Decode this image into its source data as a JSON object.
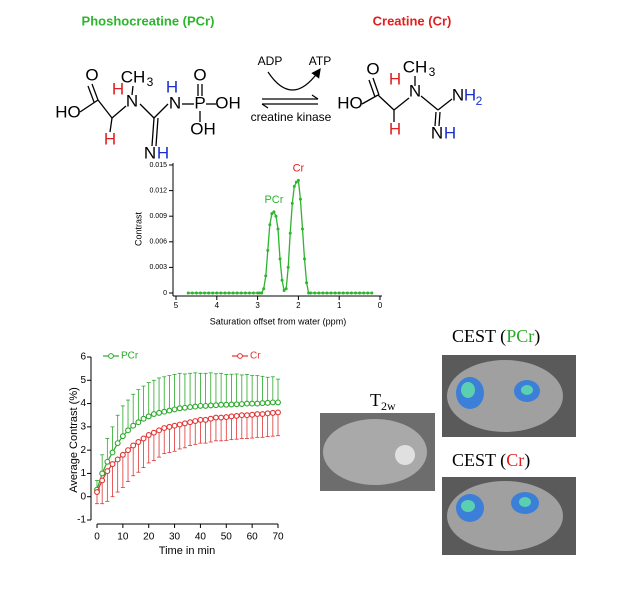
{
  "scheme": {
    "title_left": "Phoshocreatine (PCr)",
    "title_right": "Creatine (Cr)",
    "pcr_atoms": [
      "O",
      "HO",
      "H",
      "H",
      "CH",
      "3",
      "N",
      "H",
      "N",
      "P",
      "O",
      "OH",
      "OH",
      "N",
      "H"
    ],
    "cr_atoms": [
      "O",
      "HO",
      "H",
      "H",
      "CH",
      "3",
      "N",
      "N",
      "H",
      "2",
      "N",
      "H"
    ],
    "cofactor_in": "ADP",
    "cofactor_out": "ATP",
    "enzyme": "creatine kinase"
  },
  "images": {
    "t2w": {
      "label": "T",
      "sub": "2w"
    },
    "cest_pcr": {
      "prefix": "CEST (",
      "agent": "PCr",
      "suffix": ")"
    },
    "cest_cr": {
      "prefix": "CEST (",
      "agent": "Cr",
      "suffix": ")"
    }
  },
  "chart_data": [
    {
      "type": "spectrum",
      "xlabel": "Saturation offset from water (ppm)",
      "ylabel": "Contrast",
      "color": "#2db52d",
      "x": [
        4.7,
        4.6,
        4.5,
        4.4,
        4.3,
        4.2,
        4.1,
        4.0,
        3.9,
        3.8,
        3.7,
        3.6,
        3.5,
        3.4,
        3.3,
        3.2,
        3.1,
        3.0,
        2.95,
        2.9,
        2.85,
        2.8,
        2.75,
        2.7,
        2.65,
        2.6,
        2.55,
        2.5,
        2.45,
        2.4,
        2.35,
        2.3,
        2.25,
        2.2,
        2.15,
        2.1,
        2.05,
        2.0,
        1.95,
        1.9,
        1.85,
        1.8,
        1.75,
        1.7,
        1.6,
        1.5,
        1.4,
        1.3,
        1.2,
        1.1,
        1.0,
        0.9,
        0.8,
        0.7,
        0.6,
        0.5,
        0.4,
        0.3,
        0.2
      ],
      "values": [
        0,
        0,
        0,
        0,
        0,
        0,
        0,
        0,
        0,
        0,
        0,
        0,
        0,
        0,
        0,
        0,
        0,
        0,
        0,
        0,
        0.0005,
        0.002,
        0.005,
        0.008,
        0.0093,
        0.0095,
        0.009,
        0.0075,
        0.004,
        0.0015,
        0.0003,
        0.0005,
        0.003,
        0.007,
        0.0105,
        0.0125,
        0.013,
        0.0132,
        0.011,
        0.0075,
        0.004,
        0.0012,
        0,
        0,
        0,
        0,
        0,
        0,
        0,
        0,
        0,
        0,
        0,
        0,
        0,
        0,
        0,
        0,
        0
      ],
      "annotations": [
        {
          "text": "PCr",
          "x": 2.6,
          "y": 0.0095,
          "color": "#2db52d"
        },
        {
          "text": "Cr",
          "x": 2.0,
          "y": 0.0132,
          "color": "#e02020"
        }
      ],
      "xlim": [
        5,
        0
      ],
      "ylim": [
        0,
        0.015
      ],
      "xticks": [
        5,
        4,
        3,
        2,
        1,
        0
      ],
      "yticks": [
        0,
        0.003,
        0.006,
        0.009,
        0.012,
        0.015
      ]
    },
    {
      "type": "errorline",
      "xlabel": "Time in min",
      "ylabel": "Average Contrast (%)",
      "x": [
        0,
        2,
        4,
        6,
        8,
        10,
        12,
        14,
        16,
        18,
        20,
        22,
        24,
        26,
        28,
        30,
        32,
        34,
        36,
        38,
        40,
        42,
        44,
        46,
        48,
        50,
        52,
        54,
        56,
        58,
        60,
        62,
        64,
        66,
        68,
        70
      ],
      "series": [
        {
          "name": "PCr",
          "color": "#2aa82a",
          "error_direction": "up",
          "values": [
            0.3,
            1.0,
            1.5,
            1.9,
            2.3,
            2.6,
            2.85,
            3.05,
            3.2,
            3.35,
            3.45,
            3.55,
            3.6,
            3.65,
            3.7,
            3.75,
            3.8,
            3.82,
            3.85,
            3.87,
            3.9,
            3.9,
            3.92,
            3.93,
            3.95,
            3.95,
            3.96,
            3.97,
            3.98,
            4.0,
            4.0,
            4.0,
            4.02,
            4.03,
            4.05,
            4.05
          ],
          "errors": [
            0.4,
            0.8,
            1.0,
            1.1,
            1.2,
            1.3,
            1.3,
            1.35,
            1.4,
            1.4,
            1.45,
            1.45,
            1.5,
            1.5,
            1.5,
            1.5,
            1.5,
            1.45,
            1.45,
            1.45,
            1.4,
            1.4,
            1.4,
            1.35,
            1.35,
            1.3,
            1.3,
            1.3,
            1.25,
            1.25,
            1.2,
            1.2,
            1.15,
            1.1,
            1.1,
            1.0
          ]
        },
        {
          "name": "Cr",
          "color": "#e03434",
          "error_direction": "down",
          "values": [
            0.2,
            0.7,
            1.1,
            1.4,
            1.6,
            1.8,
            2.0,
            2.2,
            2.35,
            2.5,
            2.65,
            2.75,
            2.85,
            2.95,
            3.0,
            3.05,
            3.1,
            3.15,
            3.2,
            3.25,
            3.3,
            3.3,
            3.35,
            3.4,
            3.4,
            3.42,
            3.45,
            3.47,
            3.5,
            3.5,
            3.52,
            3.55,
            3.55,
            3.58,
            3.6,
            3.62
          ],
          "errors": [
            0.5,
            1.0,
            1.3,
            1.4,
            1.4,
            1.4,
            1.35,
            1.3,
            1.3,
            1.25,
            1.2,
            1.2,
            1.15,
            1.1,
            1.1,
            1.1,
            1.05,
            1.05,
            1.0,
            1.0,
            1.0,
            1.0,
            1.0,
            1.0,
            1.0,
            1.0,
            1.0,
            1.0,
            1.0,
            1.0,
            1.0,
            1.0,
            1.0,
            1.0,
            1.0,
            1.0
          ]
        }
      ],
      "xlim": [
        0,
        70
      ],
      "ylim": [
        -1,
        6
      ],
      "xticks": [
        0,
        10,
        20,
        30,
        40,
        50,
        60,
        70
      ],
      "yticks": [
        -1,
        0,
        1,
        2,
        3,
        4,
        5,
        6
      ]
    }
  ]
}
